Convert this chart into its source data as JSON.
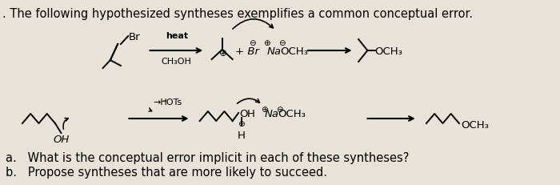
{
  "bg_color": "#e8e3d8",
  "title": ". The following hypothesized syntheses exemplifies a common conceptual error.",
  "title_fontsize": 10.5,
  "line_a": "a.   What is the conceptual error implicit in each of these syntheses?",
  "line_b": "b.   Propose syntheses that are more likely to succeed.",
  "footer_fontsize": 10.5
}
